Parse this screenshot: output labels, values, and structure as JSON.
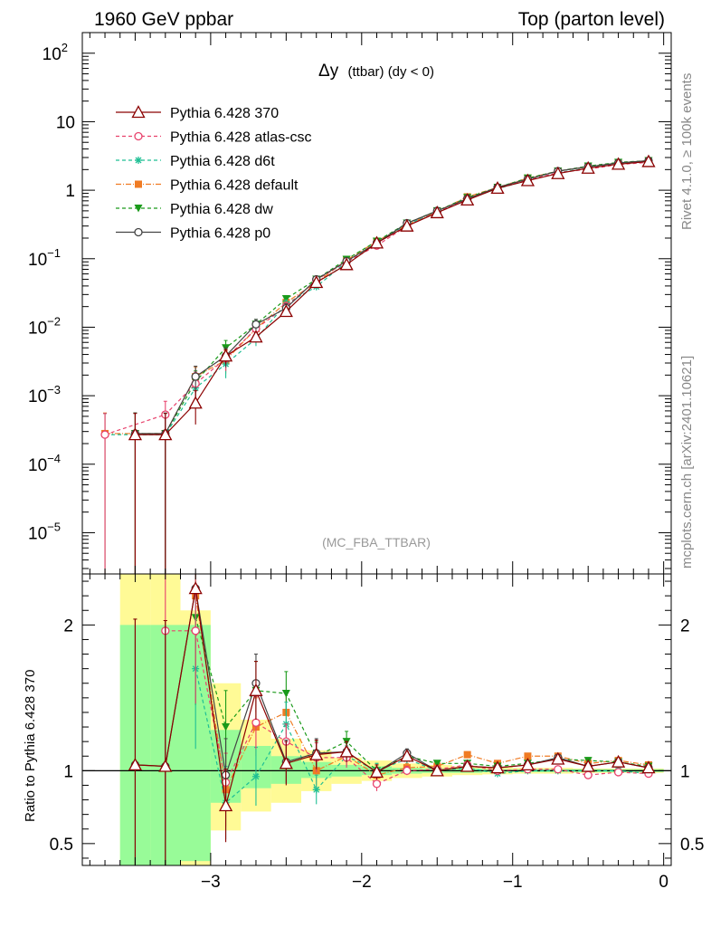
{
  "header": {
    "left_title": "1960 GeV ppbar",
    "right_title": "Top (parton level)",
    "side_label_top": "Rivet 4.1.0, ≥ 100k events",
    "side_label_bottom": "mcplots.cern.ch [arXiv:2401.10621]",
    "watermark": "(MC_FBA_TTBAR)"
  },
  "colors": {
    "p370": "#8b0000",
    "atlas": "#e8426c",
    "d6t": "#1fbf94",
    "default": "#f07b23",
    "dw": "#1a9a1a",
    "p0": "#444444",
    "band_green": "#98fb98",
    "band_yellow": "#fffa96"
  },
  "chart_data": [
    {
      "type": "line",
      "title": "Δy (ttbar) (dy < 0)",
      "title_main": "Δy",
      "title_sub": "(ttbar) (dy < 0)",
      "yscale": "log",
      "ylim": [
        2.5e-06,
        200
      ],
      "xlim": [
        -3.85,
        0.05
      ],
      "yticks": [
        {
          "v": 100,
          "base": "10",
          "exp": "2"
        },
        {
          "v": 10,
          "base": "10",
          "exp": ""
        },
        {
          "v": 1,
          "base": "1",
          "exp": ""
        },
        {
          "v": 0.1,
          "base": "10",
          "exp": "−1"
        },
        {
          "v": 0.01,
          "base": "10",
          "exp": "−2"
        },
        {
          "v": 0.001,
          "base": "10",
          "exp": "−3"
        },
        {
          "v": 0.0001,
          "base": "10",
          "exp": "−4"
        },
        {
          "v": 1e-05,
          "base": "10",
          "exp": "−5"
        }
      ],
      "legend_position": "top-left",
      "series": [
        {
          "key": "p370",
          "name": "Pythia 6.428 370",
          "marker": "triangle-open",
          "dash": "",
          "x": [
            -3.5,
            -3.3,
            -3.1,
            -2.9,
            -2.7,
            -2.5,
            -2.3,
            -2.1,
            -1.9,
            -1.7,
            -1.5,
            -1.3,
            -1.1,
            -0.9,
            -0.7,
            -0.5,
            -0.3,
            -0.1
          ],
          "y": [
            0.00027,
            0.00027,
            0.00078,
            0.0038,
            0.0072,
            0.017,
            0.045,
            0.082,
            0.17,
            0.3,
            0.47,
            0.72,
            1.07,
            1.38,
            1.75,
            2.1,
            2.4,
            2.62
          ],
          "err_hi": [
            0.00028,
            0.00028,
            0.0004,
            0.0009,
            0.0012,
            0.002,
            0.003,
            0.005,
            0.008,
            0.01,
            0.012,
            0.015,
            0.02,
            0.02,
            0.025,
            0.03,
            0.03,
            0.03
          ]
        },
        {
          "key": "atlas",
          "name": "Pythia 6.428 atlas-csc",
          "marker": "circle-open",
          "dash": "4,3",
          "x": [
            -3.7,
            -3.3,
            -3.1,
            -2.9,
            -2.7,
            -2.5,
            -2.3,
            -2.1,
            -1.9,
            -1.7,
            -1.5,
            -1.3,
            -1.1,
            -0.9,
            -0.7,
            -0.5,
            -0.3,
            -0.1
          ],
          "y": [
            0.00027,
            0.00053,
            0.0015,
            0.0035,
            0.0095,
            0.02,
            0.049,
            0.09,
            0.155,
            0.3,
            0.48,
            0.75,
            1.08,
            1.4,
            1.8,
            2.03,
            2.37,
            2.55
          ],
          "err_hi": [
            0.00028,
            0.0003,
            0.0007,
            0.0012,
            0.002,
            0.003,
            0.004,
            0.006,
            0.008,
            0.01,
            0.012,
            0.015,
            0.02,
            0.02,
            0.025,
            0.03,
            0.03,
            0.03
          ]
        },
        {
          "key": "d6t",
          "name": "Pythia 6.428 d6t",
          "marker": "star",
          "dash": "4,3",
          "x": [
            -3.7,
            -3.3,
            -3.1,
            -2.9,
            -2.7,
            -2.5,
            -2.3,
            -2.1,
            -1.9,
            -1.7,
            -1.5,
            -1.3,
            -1.1,
            -0.9,
            -0.7,
            -0.5,
            -0.3,
            -0.1
          ],
          "y": [
            0.00027,
            0.00027,
            0.0013,
            0.0029,
            0.0068,
            0.022,
            0.039,
            0.09,
            0.17,
            0.32,
            0.47,
            0.74,
            1.05,
            1.4,
            1.8,
            2.1,
            2.45,
            2.56
          ],
          "err_hi": [
            0.00028,
            0.00028,
            0.0006,
            0.0011,
            0.0015,
            0.003,
            0.003,
            0.006,
            0.008,
            0.01,
            0.012,
            0.015,
            0.02,
            0.02,
            0.025,
            0.03,
            0.03,
            0.03
          ]
        },
        {
          "key": "default",
          "name": "Pythia 6.428 default",
          "marker": "square",
          "dash": "6,2,1,2",
          "x": [
            -3.7,
            -3.5,
            -3.3,
            -3.1,
            -2.9,
            -2.7,
            -2.5,
            -2.3,
            -2.1,
            -1.9,
            -1.7,
            -1.5,
            -1.3,
            -1.1,
            -0.9,
            -0.7,
            -0.5,
            -0.3,
            -0.1
          ],
          "y": [
            0.00028,
            0.00028,
            0.00028,
            0.0019,
            0.0033,
            0.0095,
            0.023,
            0.045,
            0.095,
            0.18,
            0.31,
            0.49,
            0.8,
            1.1,
            1.5,
            1.9,
            2.2,
            2.5,
            2.7
          ],
          "err_hi": [
            0.00028,
            0.00028,
            0.00028,
            0.0007,
            0.0012,
            0.002,
            0.003,
            0.004,
            0.006,
            0.008,
            0.01,
            0.012,
            0.015,
            0.02,
            0.02,
            0.025,
            0.03,
            0.03,
            0.03
          ]
        },
        {
          "key": "dw",
          "name": "Pythia 6.428 dw",
          "marker": "triangle-down",
          "dash": "4,3",
          "x": [
            -3.5,
            -3.3,
            -3.1,
            -2.9,
            -2.7,
            -2.5,
            -2.3,
            -2.1,
            -1.9,
            -1.7,
            -1.5,
            -1.3,
            -1.1,
            -0.9,
            -0.7,
            -0.5,
            -0.3,
            -0.1
          ],
          "y": [
            0.00028,
            0.00028,
            0.0016,
            0.005,
            0.011,
            0.026,
            0.05,
            0.098,
            0.18,
            0.33,
            0.5,
            0.78,
            1.1,
            1.5,
            1.9,
            2.25,
            2.55,
            2.7
          ],
          "err_hi": [
            0.00028,
            0.00028,
            0.0007,
            0.0014,
            0.002,
            0.003,
            0.004,
            0.006,
            0.008,
            0.01,
            0.012,
            0.015,
            0.02,
            0.02,
            0.025,
            0.03,
            0.03,
            0.03
          ]
        },
        {
          "key": "p0",
          "name": "Pythia 6.428 p0",
          "marker": "circle-open",
          "dash": "",
          "x": [
            -3.5,
            -3.3,
            -3.1,
            -2.9,
            -2.7,
            -2.5,
            -2.3,
            -2.1,
            -1.9,
            -1.7,
            -1.5,
            -1.3,
            -1.1,
            -0.9,
            -0.7,
            -0.5,
            -0.3,
            -0.1
          ],
          "y": [
            0.00028,
            0.00028,
            0.0019,
            0.0038,
            0.011,
            0.019,
            0.05,
            0.092,
            0.17,
            0.33,
            0.5,
            0.75,
            1.1,
            1.45,
            1.9,
            2.2,
            2.5,
            2.7
          ],
          "err_hi": [
            0.00028,
            0.00028,
            0.0008,
            0.0012,
            0.002,
            0.003,
            0.004,
            0.006,
            0.008,
            0.01,
            0.012,
            0.015,
            0.02,
            0.02,
            0.025,
            0.03,
            0.03,
            0.03
          ]
        }
      ]
    },
    {
      "type": "line",
      "title": "",
      "ylabel": "Ratio to Pythia 6.428 370",
      "xlabel": "",
      "xlim": [
        -3.85,
        0.05
      ],
      "ylim": [
        0.35,
        2.35
      ],
      "yticks": [
        0.5,
        1,
        2
      ],
      "ytick_labels": [
        "0.5",
        "1",
        "2"
      ],
      "xticks": [
        -3,
        -2,
        -1,
        0
      ],
      "xtick_labels": [
        "−3",
        "−2",
        "−1",
        "0"
      ],
      "bands": [
        {
          "x0": -3.6,
          "x1": -3.4,
          "g_lo": 0.35,
          "g_hi": 2.0,
          "y_lo": 0.35,
          "y_hi": 2.35
        },
        {
          "x0": -3.4,
          "x1": -3.2,
          "g_lo": 0.35,
          "g_hi": 2.0,
          "y_lo": 0.35,
          "y_hi": 2.35
        },
        {
          "x0": -3.2,
          "x1": -3.0,
          "g_lo": 0.38,
          "g_hi": 2.0,
          "y_lo": 0.35,
          "y_hi": 2.1
        },
        {
          "x0": -3.0,
          "x1": -2.8,
          "g_lo": 0.78,
          "g_hi": 1.28,
          "y_lo": 0.59,
          "y_hi": 1.6
        },
        {
          "x0": -2.8,
          "x1": -2.6,
          "g_lo": 0.88,
          "g_hi": 1.17,
          "y_lo": 0.72,
          "y_hi": 1.35
        },
        {
          "x0": -2.6,
          "x1": -2.4,
          "g_lo": 0.91,
          "g_hi": 1.1,
          "y_lo": 0.78,
          "y_hi": 1.22
        },
        {
          "x0": -2.4,
          "x1": -2.2,
          "g_lo": 0.95,
          "g_hi": 1.06,
          "y_lo": 0.86,
          "y_hi": 1.14
        },
        {
          "x0": -2.2,
          "x1": -2.0,
          "g_lo": 0.96,
          "g_hi": 1.04,
          "y_lo": 0.91,
          "y_hi": 1.09
        },
        {
          "x0": -2.0,
          "x1": -1.8,
          "g_lo": 0.97,
          "g_hi": 1.03,
          "y_lo": 0.93,
          "y_hi": 1.07
        },
        {
          "x0": -1.8,
          "x1": -1.6,
          "g_lo": 0.98,
          "g_hi": 1.02,
          "y_lo": 0.95,
          "y_hi": 1.05
        },
        {
          "x0": -1.6,
          "x1": -1.4,
          "g_lo": 0.985,
          "g_hi": 1.015,
          "y_lo": 0.96,
          "y_hi": 1.04
        },
        {
          "x0": -1.4,
          "x1": -1.2,
          "g_lo": 0.985,
          "g_hi": 1.015,
          "y_lo": 0.97,
          "y_hi": 1.03
        },
        {
          "x0": -1.2,
          "x1": -1.0,
          "g_lo": 0.99,
          "g_hi": 1.01,
          "y_lo": 0.975,
          "y_hi": 1.025
        },
        {
          "x0": -1.0,
          "x1": -0.8,
          "g_lo": 0.99,
          "g_hi": 1.01,
          "y_lo": 0.98,
          "y_hi": 1.02
        },
        {
          "x0": -0.8,
          "x1": -0.6,
          "g_lo": 0.99,
          "g_hi": 1.01,
          "y_lo": 0.98,
          "y_hi": 1.02
        },
        {
          "x0": -0.6,
          "x1": -0.4,
          "g_lo": 0.99,
          "g_hi": 1.01,
          "y_lo": 0.985,
          "y_hi": 1.015
        },
        {
          "x0": -0.4,
          "x1": -0.2,
          "g_lo": 0.99,
          "g_hi": 1.01,
          "y_lo": 0.985,
          "y_hi": 1.015
        },
        {
          "x0": -0.2,
          "x1": 0.0,
          "g_lo": 0.99,
          "g_hi": 1.01,
          "y_lo": 0.985,
          "y_hi": 1.015
        }
      ],
      "series": [
        {
          "key": "p370",
          "marker": "triangle-open",
          "dash": "",
          "x": [
            -3.5,
            -3.3,
            -3.1,
            -2.9,
            -2.7,
            -2.5,
            -2.3,
            -2.1,
            -1.9,
            -1.7,
            -1.5,
            -1.3,
            -1.1,
            -0.9,
            -0.7,
            -0.5,
            -0.3,
            -0.1
          ],
          "y": [
            1.04,
            1.03,
            2.25,
            0.76,
            1.55,
            1.05,
            1.11,
            1.13,
            0.99,
            1.1,
            1.0,
            1.03,
            1.02,
            1.04,
            1.08,
            1.03,
            1.06,
            1.02
          ],
          "err": [
            1.0,
            1.0,
            0.0,
            0.25,
            0.2,
            0.15,
            0.1,
            0.07,
            0.05,
            0.03,
            0.02,
            0.02,
            0.02,
            0.02,
            0.02,
            0.02,
            0.02,
            0.02
          ]
        },
        {
          "key": "atlas",
          "marker": "circle-open",
          "dash": "4,3",
          "x": [
            -3.3,
            -3.1,
            -2.9,
            -2.7,
            -2.5,
            -2.3,
            -2.1,
            -1.9,
            -1.7,
            -1.5,
            -1.3,
            -1.1,
            -0.9,
            -0.7,
            -0.5,
            -0.3,
            -0.1
          ],
          "y": [
            1.96,
            1.96,
            0.92,
            1.33,
            1.2,
            1.09,
            1.09,
            0.91,
            1.0,
            1.01,
            1.04,
            1.0,
            1.01,
            1.01,
            0.97,
            0.99,
            0.98
          ],
          "err": [
            1.37,
            0.5,
            0.2,
            0.18,
            0.12,
            0.1,
            0.07,
            0.05,
            0.03,
            0.02,
            0.02,
            0.02,
            0.02,
            0.02,
            0.02,
            0.02,
            0.02
          ]
        },
        {
          "key": "d6t",
          "marker": "star",
          "dash": "4,3",
          "x": [
            -3.1,
            -2.9,
            -2.7,
            -2.5,
            -2.3,
            -2.1,
            -1.9,
            -1.7,
            -1.5,
            -1.3,
            -1.1,
            -0.9,
            -0.7,
            -0.5,
            -0.3,
            -0.1
          ],
          "y": [
            1.7,
            0.78,
            0.96,
            1.32,
            0.87,
            1.1,
            1.0,
            1.08,
            1.0,
            1.02,
            0.98,
            1.0,
            1.0,
            1.0,
            1.0,
            0.98
          ],
          "err": [
            0.55,
            0.25,
            0.2,
            0.15,
            0.1,
            0.07,
            0.05,
            0.03,
            0.02,
            0.02,
            0.02,
            0.02,
            0.02,
            0.02,
            0.02,
            0.02
          ]
        },
        {
          "key": "default",
          "marker": "square",
          "dash": "6,2,1,2",
          "x": [
            -3.1,
            -2.9,
            -2.7,
            -2.5,
            -2.3,
            -2.1,
            -1.9,
            -1.7,
            -1.5,
            -1.3,
            -1.1,
            -0.9,
            -0.7,
            -0.5,
            -0.3,
            -0.1
          ],
          "y": [
            2.2,
            0.87,
            1.3,
            1.4,
            1.0,
            1.1,
            0.97,
            1.02,
            1.03,
            1.11,
            1.05,
            1.1,
            1.1,
            1.05,
            1.07,
            1.04
          ],
          "err": [
            0.6,
            0.25,
            0.2,
            0.15,
            0.1,
            0.07,
            0.05,
            0.03,
            0.02,
            0.02,
            0.02,
            0.02,
            0.02,
            0.02,
            0.02,
            0.02
          ]
        },
        {
          "key": "dw",
          "marker": "triangle-down",
          "dash": "4,3",
          "x": [
            -3.1,
            -2.9,
            -2.7,
            -2.5,
            -2.3,
            -2.1,
            -1.9,
            -1.7,
            -1.5,
            -1.3,
            -1.1,
            -0.9,
            -0.7,
            -0.5,
            -0.3,
            -0.1
          ],
          "y": [
            2.05,
            1.3,
            1.55,
            1.53,
            1.1,
            1.2,
            1.0,
            1.1,
            1.05,
            1.05,
            1.03,
            1.05,
            1.08,
            1.07,
            1.06,
            1.03
          ],
          "err": [
            0.6,
            0.25,
            0.2,
            0.15,
            0.1,
            0.07,
            0.05,
            0.03,
            0.02,
            0.02,
            0.02,
            0.02,
            0.02,
            0.02,
            0.02,
            0.02
          ]
        },
        {
          "key": "p0",
          "marker": "circle-open",
          "dash": "",
          "x": [
            -3.5,
            -3.3,
            -3.1,
            -2.9,
            -2.7,
            -2.5,
            -2.3,
            -2.1,
            -1.9,
            -1.7,
            -1.5,
            -1.3,
            -1.1,
            -0.9,
            -0.7,
            -0.5,
            -0.3,
            -0.1
          ],
          "y": [
            1.04,
            1.03,
            2.25,
            0.97,
            1.6,
            1.06,
            1.12,
            1.13,
            0.99,
            1.12,
            1.0,
            1.03,
            1.02,
            1.04,
            1.09,
            1.03,
            1.06,
            1.02
          ],
          "err": [
            1.0,
            1.0,
            0.0,
            0.25,
            0.2,
            0.15,
            0.1,
            0.07,
            0.05,
            0.03,
            0.02,
            0.02,
            0.02,
            0.02,
            0.02,
            0.02,
            0.02,
            0.02
          ]
        }
      ]
    }
  ]
}
